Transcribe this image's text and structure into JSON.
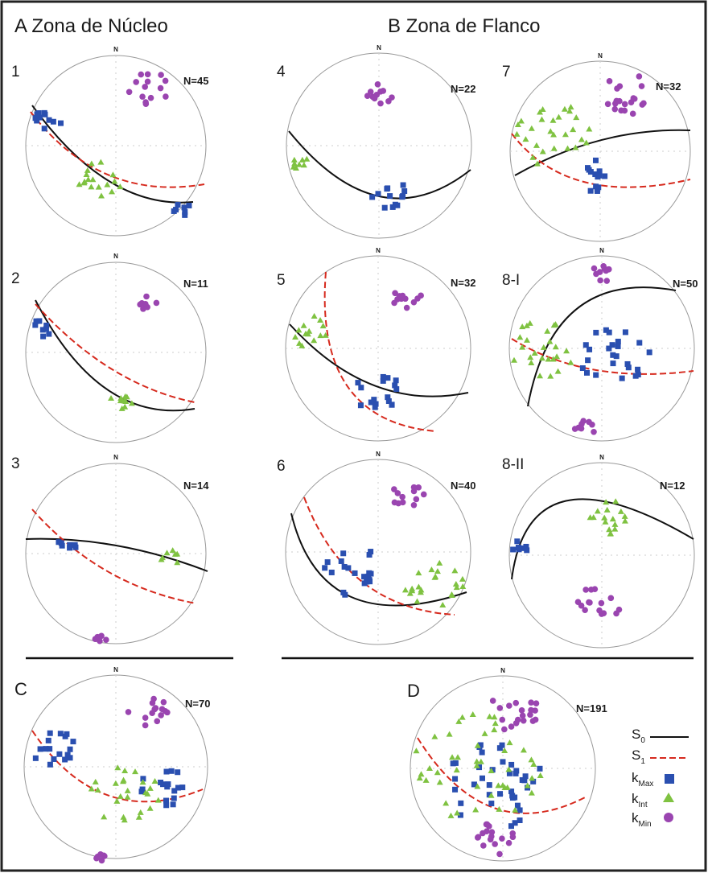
{
  "headers": {
    "a": "A Zona de Núcleo",
    "b": "B Zona de Flanco"
  },
  "colors": {
    "kmax": "#2a4fb0",
    "kint": "#7fc241",
    "kmin": "#9a45b0",
    "s0": "#111111",
    "s1": "#d62a1e"
  },
  "legend": {
    "s0": {
      "main": "S",
      "sub": "0"
    },
    "s1": {
      "main": "S",
      "sub": "1"
    },
    "kmax": {
      "main": "k",
      "sub": "Max"
    },
    "kint": {
      "main": "k",
      "sub": "Int"
    },
    "kmin": {
      "main": "k",
      "sub": "Min"
    }
  },
  "plots": [
    {
      "id": "1",
      "north": "N",
      "count": "N=45"
    },
    {
      "id": "2",
      "north": "N",
      "count": "N=11"
    },
    {
      "id": "3",
      "north": "N",
      "count": "N=14"
    },
    {
      "id": "4",
      "north": "N",
      "count": "N=22"
    },
    {
      "id": "5",
      "north": "N",
      "count": "N=32"
    },
    {
      "id": "6",
      "north": "N",
      "count": "N=40"
    },
    {
      "id": "7",
      "north": "N",
      "count": "N=32"
    },
    {
      "id": "8-I",
      "north": "N",
      "count": "N=50"
    },
    {
      "id": "8-II",
      "north": "N",
      "count": "N=12"
    },
    {
      "id": "C",
      "north": "N",
      "count": "N=70"
    },
    {
      "id": "D",
      "north": "N",
      "count": "N=191"
    }
  ]
}
